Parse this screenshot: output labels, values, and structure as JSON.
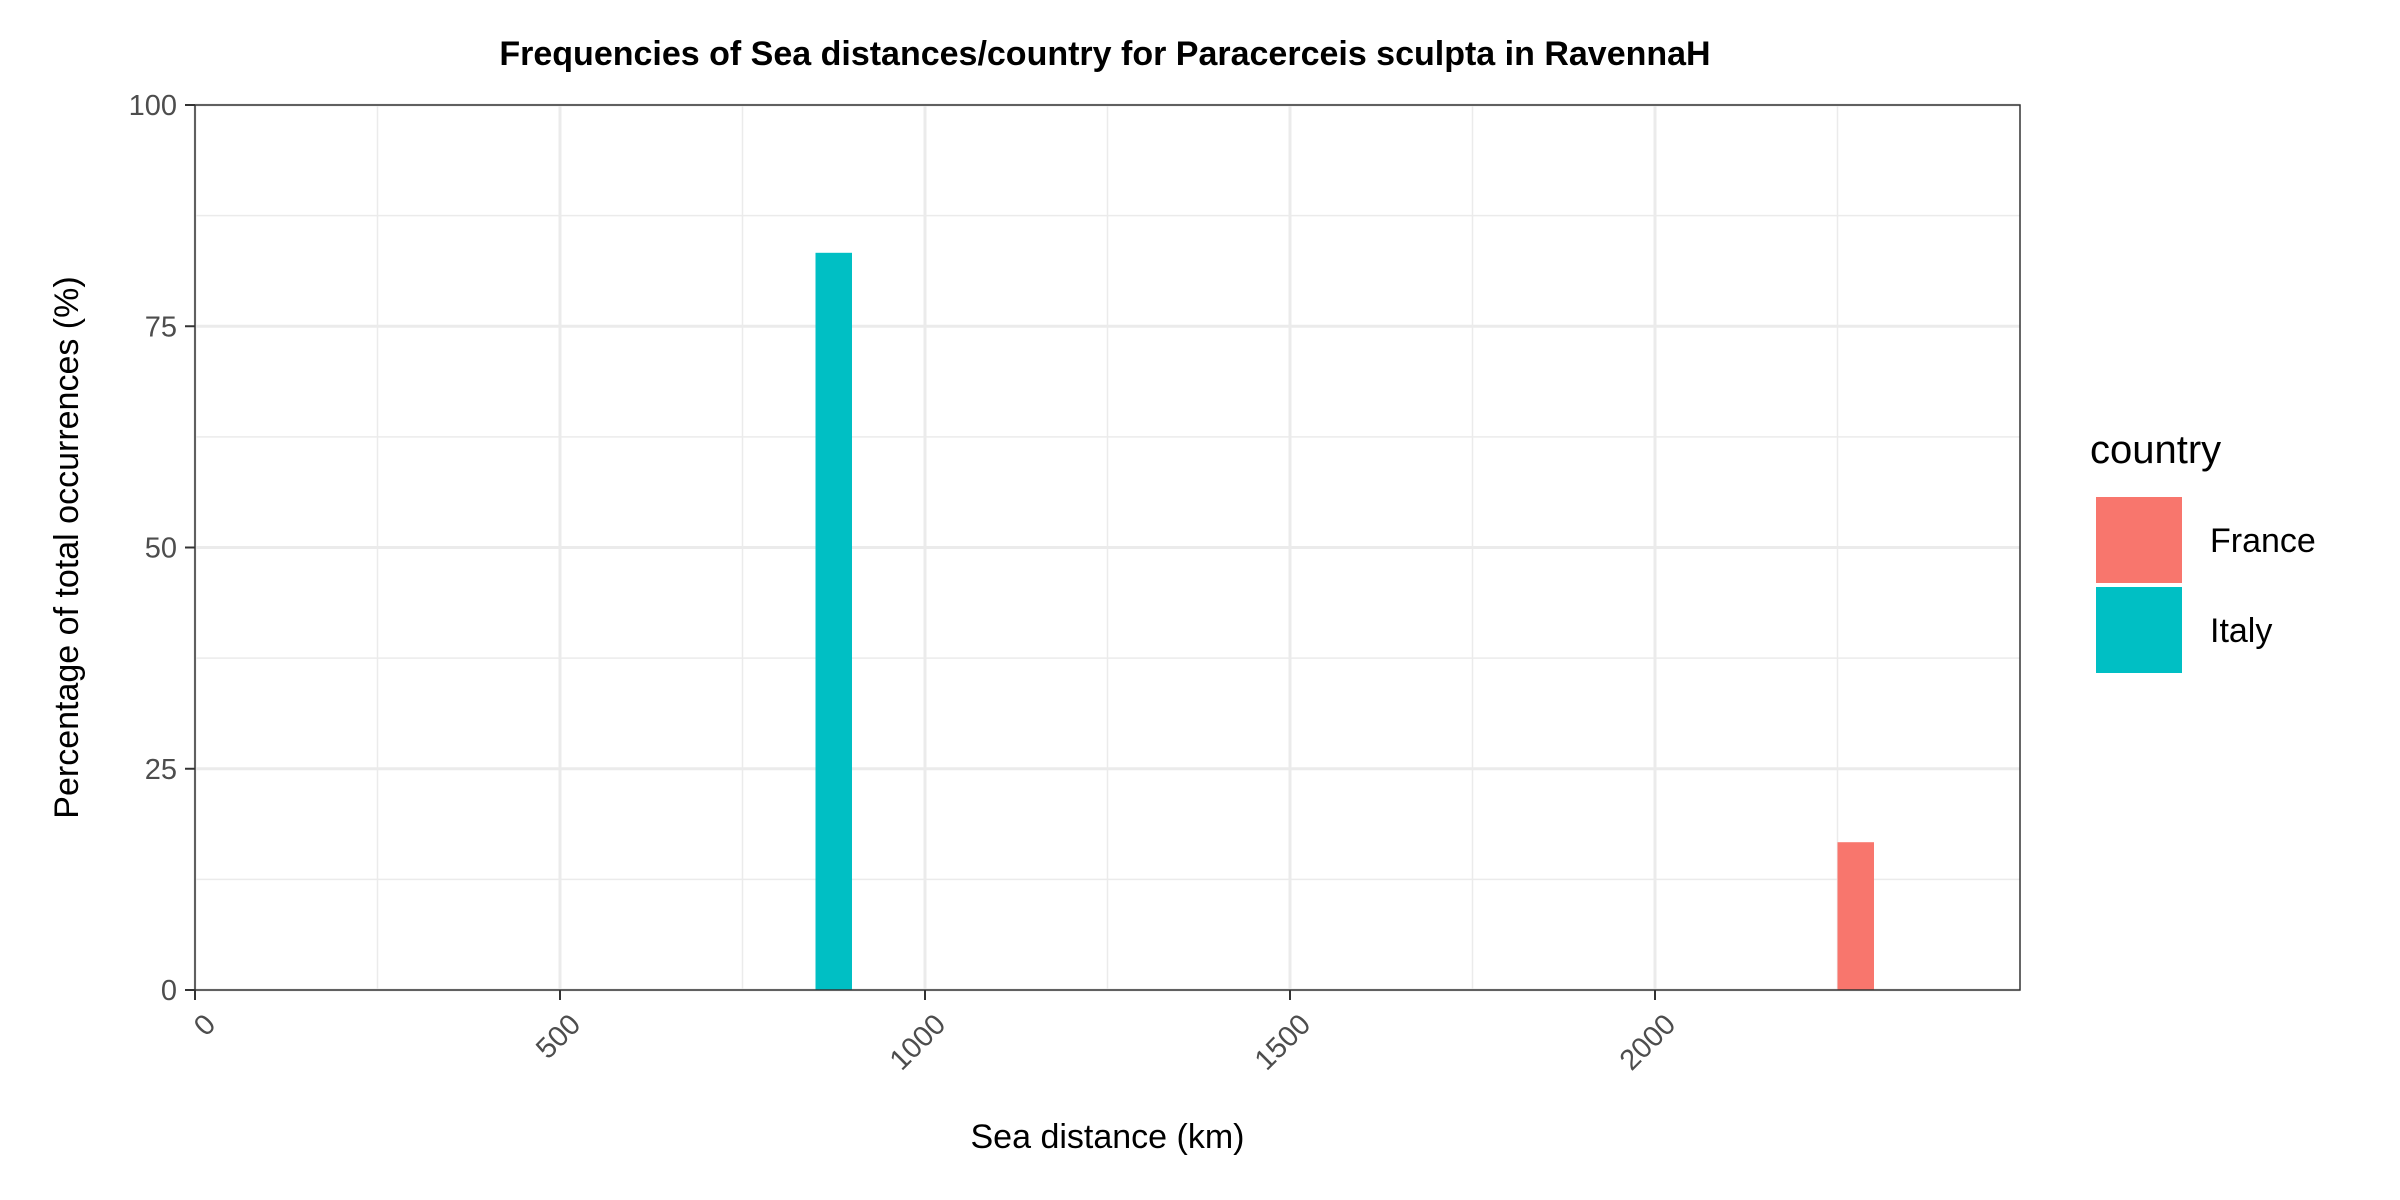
{
  "chart_data": {
    "type": "bar",
    "title": "Frequencies of Sea distances/country for Paracerceis sculpta in RavennaH",
    "xlabel": "Sea distance (km)",
    "ylabel": "Percentage of total occurrences (%)",
    "xlim": [
      0,
      2500
    ],
    "ylim": [
      0,
      100
    ],
    "x_ticks": [
      0,
      500,
      1000,
      1500,
      2000
    ],
    "x_tick_labels": [
      "0",
      "500",
      "1000",
      "1500",
      "2000"
    ],
    "y_ticks": [
      0,
      25,
      50,
      75,
      100
    ],
    "y_tick_labels": [
      "0",
      "25",
      "50",
      "75",
      "100"
    ],
    "bin_width": 50,
    "grid": true,
    "legend": {
      "title": "country",
      "position": "right",
      "entries": [
        "France",
        "Italy"
      ]
    },
    "colors": {
      "France": "#F8766D",
      "Italy": "#00BFC4"
    },
    "series": [
      {
        "name": "Italy",
        "bars": [
          {
            "x_start": 850,
            "x_end": 900,
            "value": 83.3
          }
        ]
      },
      {
        "name": "France",
        "bars": [
          {
            "x_start": 2250,
            "x_end": 2300,
            "value": 16.7
          }
        ]
      }
    ]
  }
}
